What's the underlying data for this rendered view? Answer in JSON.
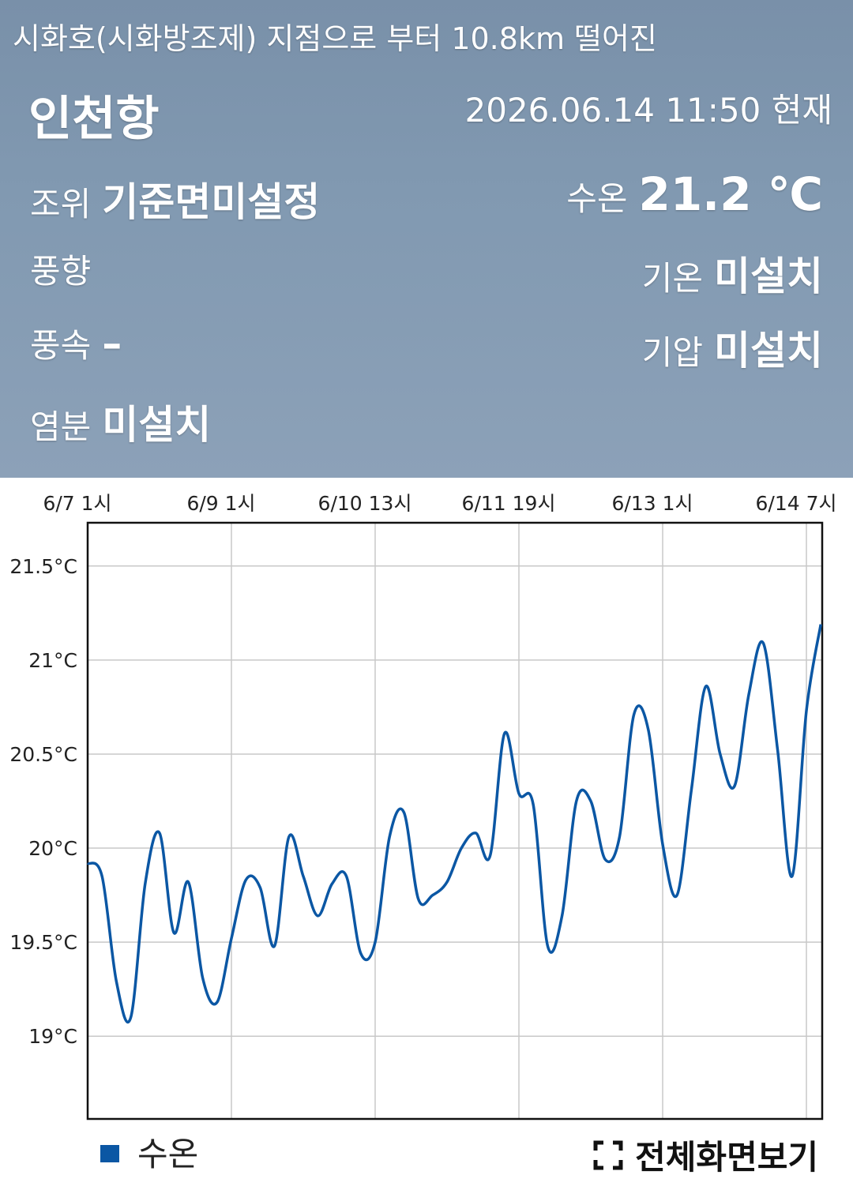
{
  "header": {
    "distance_note": "시화호(시화방조제) 지점으로 부터 10.8km 떨어진",
    "station": "인천항",
    "timestamp": "2026.06.14 11:50 현재"
  },
  "observations_left": [
    {
      "label": "조위",
      "value": "기준면미설정"
    },
    {
      "label": "풍향"
    },
    {
      "label": "풍속",
      "value": "–"
    },
    {
      "label": "염분",
      "value": "미설치"
    }
  ],
  "observations_right": [
    {
      "label": "수온",
      "value": "21.2 ℃"
    },
    {
      "label": "기온",
      "value": "미설치"
    },
    {
      "label": "기압",
      "value": "미설치"
    }
  ],
  "controls": {
    "fullscreen": "전체화면보기"
  },
  "chart_data": {
    "type": "line",
    "categories": [
      "6/7 1시",
      null,
      null,
      null,
      null,
      null,
      null,
      null,
      null,
      null,
      "6/9 1시",
      null,
      null,
      null,
      null,
      null,
      null,
      null,
      null,
      null,
      "6/10 13시",
      null,
      null,
      null,
      null,
      null,
      null,
      null,
      null,
      null,
      "6/11 19시",
      null,
      null,
      null,
      null,
      null,
      null,
      null,
      null,
      null,
      "6/13 1시",
      null,
      null,
      null,
      null,
      null,
      null,
      null,
      null,
      null,
      "6/14 7시",
      null
    ],
    "series": [
      {
        "name": "수온",
        "color": "#0b57a4",
        "values": [
          19.92,
          19.85,
          19.29,
          19.1,
          19.81,
          20.08,
          19.55,
          19.82,
          19.31,
          19.18,
          19.52,
          19.83,
          19.79,
          19.48,
          20.06,
          19.85,
          19.64,
          19.81,
          19.85,
          19.44,
          19.5,
          20.06,
          20.19,
          19.73,
          19.75,
          19.82,
          20.0,
          20.08,
          19.96,
          20.61,
          20.29,
          20.23,
          19.48,
          19.64,
          20.25,
          20.25,
          19.94,
          20.06,
          20.71,
          20.63,
          20.02,
          19.75,
          20.31,
          20.86,
          20.5,
          20.33,
          20.82,
          21.09,
          20.52,
          19.85,
          20.73,
          21.19
        ]
      }
    ],
    "ylim": [
      18.56,
      21.73
    ],
    "yticks": [
      {
        "value": 19,
        "label": "19°C"
      },
      {
        "value": 19.5,
        "label": "19.5°C"
      },
      {
        "value": 20,
        "label": "20°C"
      },
      {
        "value": 20.5,
        "label": "20.5°C"
      },
      {
        "value": 21,
        "label": "21°C"
      },
      {
        "value": 21.5,
        "label": "21.5°C"
      }
    ],
    "grid": true
  }
}
